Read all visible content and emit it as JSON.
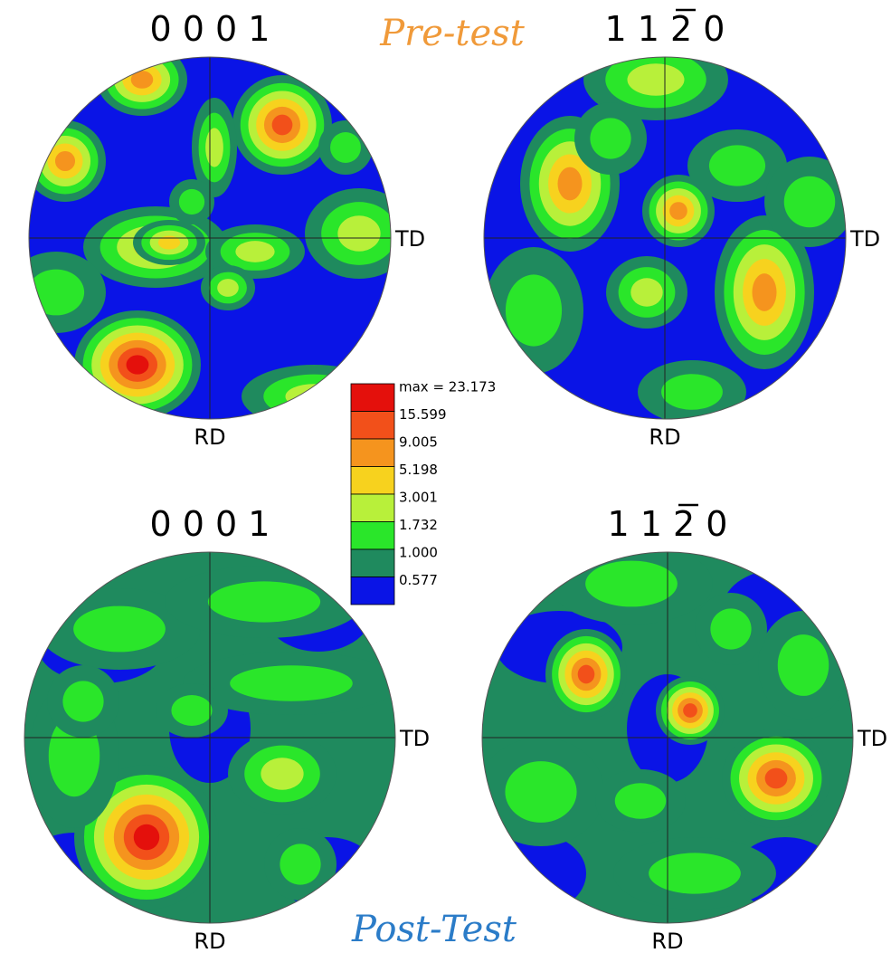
{
  "headings": {
    "pre": "Pre-test",
    "post": "Post-Test"
  },
  "figures": [
    {
      "title": "0 0 0 1",
      "td": "TD",
      "rd": "RD"
    },
    {
      "title": "1 1 2 0",
      "td": "TD",
      "rd": "RD"
    },
    {
      "title": "0 0 0 1",
      "td": "TD",
      "rd": "RD"
    },
    {
      "title": "1 1 2 0",
      "td": "TD",
      "rd": "RD"
    }
  ],
  "legend": {
    "levels": [
      {
        "label": "max = 23.173",
        "color": "#e4100c"
      },
      {
        "label": "15.599",
        "color": "#f2501a"
      },
      {
        "label": "9.005",
        "color": "#f5941e"
      },
      {
        "label": "5.198",
        "color": "#f7d21e"
      },
      {
        "label": "3.001",
        "color": "#b8f03a"
      },
      {
        "label": "1.732",
        "color": "#2ae62a"
      },
      {
        "label": "1.000",
        "color": "#1f8a5e"
      },
      {
        "label": "0.577",
        "color": "#0a14e6"
      }
    ]
  }
}
